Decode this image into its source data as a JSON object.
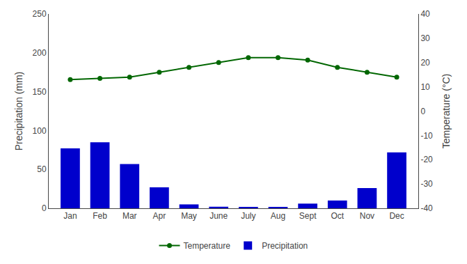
{
  "chart_data": {
    "type": "bar",
    "categories": [
      "Jan",
      "Feb",
      "Mar",
      "Apr",
      "May",
      "June",
      "July",
      "Aug",
      "Sept",
      "Oct",
      "Nov",
      "Dec"
    ],
    "series": [
      {
        "name": "Temperature",
        "type": "line",
        "axis": "y2",
        "color": "#006600",
        "marker": "circle",
        "values": [
          13,
          13.5,
          14,
          16,
          18,
          20,
          22,
          22,
          21,
          18,
          16,
          14
        ]
      },
      {
        "name": "Precipitation",
        "type": "bar",
        "color": "#0000cc",
        "values": [
          77,
          85,
          57,
          27,
          5,
          2,
          1,
          1,
          6,
          10,
          26,
          72
        ]
      }
    ],
    "ylabel": "Precipitation (mm)",
    "y2label": "Temperature (°C)",
    "ylim": [
      0,
      250
    ],
    "yticks": [
      0,
      50,
      100,
      150,
      200,
      250
    ],
    "y2lim": [
      -40,
      40
    ],
    "y2ticks": [
      -40,
      -30,
      -20,
      -10,
      0,
      10,
      20,
      30,
      40
    ],
    "legend": "bottom",
    "grid": false
  }
}
